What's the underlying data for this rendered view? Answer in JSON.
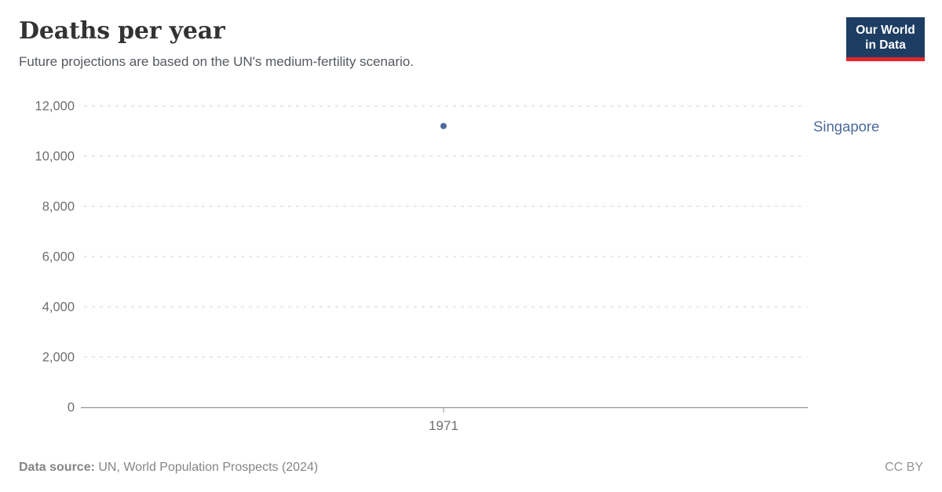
{
  "header": {
    "title": "Deaths per year",
    "subtitle": "Future projections are based on the UN's medium-fertility scenario.",
    "logo": {
      "line1": "Our World",
      "line2": "in Data",
      "bg_color": "#1d3d63",
      "accent_color": "#e2262b"
    }
  },
  "chart_data": {
    "type": "scatter",
    "title": "Deaths per year",
    "subtitle": "Future projections are based on the UN's medium-fertility scenario.",
    "series": [
      {
        "name": "Singapore",
        "color": "#4c6a9c",
        "points": [
          {
            "x": 1971,
            "y": 11200
          }
        ]
      }
    ],
    "x_tick_values": [
      1971
    ],
    "x_tick_labels": [
      "1971"
    ],
    "y_tick_values": [
      0,
      2000,
      4000,
      6000,
      8000,
      10000,
      12000
    ],
    "y_tick_labels": [
      "0",
      "2,000",
      "4,000",
      "6,000",
      "8,000",
      "10,000",
      "12,000"
    ],
    "ylim": [
      0,
      12000
    ],
    "grid": "horizontal-dashed",
    "legend_position": "inline-right-label"
  },
  "footer": {
    "data_source_label": "Data source:",
    "data_source_value": " UN, World Population Prospects (2024)",
    "license": "CC BY"
  },
  "colors": {
    "axis_text": "#6e6e6e",
    "gridline": "#e3e3e3",
    "axis_line": "#949494",
    "series_blue": "#4c6a9c"
  }
}
